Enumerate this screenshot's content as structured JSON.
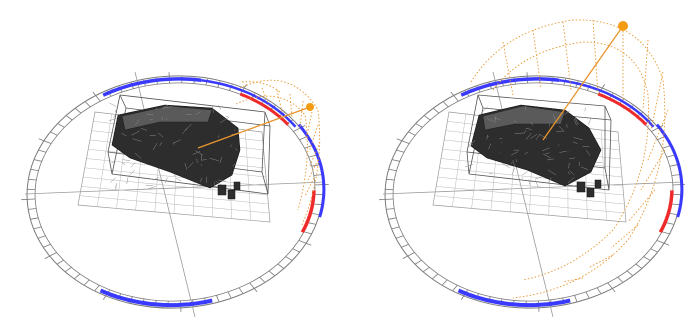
{
  "figure": {
    "panels": [
      {
        "id": "left",
        "sun_position": "low",
        "description_hidden": ""
      },
      {
        "id": "right",
        "sun_position": "high",
        "description_hidden": ""
      }
    ]
  },
  "colors": {
    "ring": "#7a7a7a",
    "grid": "#9a9a9a",
    "blue_arc": "#3a3aff",
    "red_arc": "#ee2a2a",
    "sun_path": "#e8952e",
    "sun": "#f39c12",
    "model_dark": "#2d2d2d",
    "model_mid": "#5a5a5a",
    "model_light": "#8a8a8a"
  }
}
